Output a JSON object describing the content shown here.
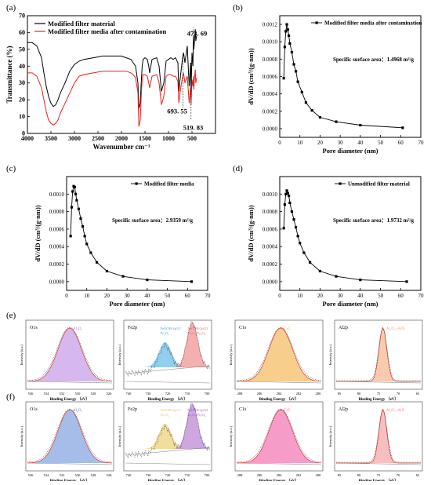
{
  "panels": {
    "a": {
      "tag": "(a)",
      "ylabel": "Transmittance (%)",
      "xlabel": "Wavenumber cm⁻¹",
      "legend": [
        {
          "label": "Modified filter material",
          "color": "#000000"
        },
        {
          "label": "Modified filter media after contamination",
          "color": "#e8211b"
        }
      ],
      "annotations": [
        "473. 69",
        "693. 55",
        "519. 83"
      ]
    },
    "b": {
      "tag": "(b)",
      "ylabel": "dV/dD (cm³/(g·nm))",
      "xlabel": "Pore diameter (nm)",
      "legend": "Modified filter media after contamination",
      "annotation": "Specific surface area：1.4968 m²/g"
    },
    "c": {
      "tag": "(c)",
      "ylabel": "dV/dD (cm³/(g·nm))",
      "xlabel": "Pore diameter (nm)",
      "legend": "Modified filter media",
      "annotation": "Specific surface area：2.9359 m²/g"
    },
    "d": {
      "tag": "(d)",
      "ylabel": "dV/dD (cm³/(g·nm))",
      "xlabel": "Pore diameter (nm)",
      "legend": "Unmodified filter material",
      "annotation": "Specific surface area：1.9732 m²/g"
    },
    "e": {
      "tag": "(e)"
    },
    "f": {
      "tag": "(f)"
    }
  },
  "xps_common": {
    "ylabel": "Intensity (a.u.)",
    "xlabel": "Binding Energy （eV）"
  },
  "xps": {
    "e": [
      {
        "element": "O1s",
        "ticks": [
          "536",
          "534",
          "532",
          "530",
          "528",
          "526"
        ],
        "peaks": [
          {
            "label": "Al₂O₃",
            "color": "#b57be0"
          }
        ]
      },
      {
        "element": "Fe2p",
        "ticks": [
          "740",
          "730",
          "720",
          "710",
          "700"
        ],
        "peaks": [
          {
            "label": "FeOOH-2p1/2\nFe₃O₄",
            "color": "#39a8e0"
          },
          {
            "label": "FeOOH-2p3/2\nFe₂O₃/Fe₃O₄",
            "color": "#ee6d6d"
          }
        ]
      },
      {
        "element": "C1s",
        "ticks": [
          "288",
          "286",
          "284",
          "282",
          "280"
        ],
        "peaks": [
          {
            "label": "C-C",
            "color": "#f2a530"
          }
        ]
      },
      {
        "element": "Al2p",
        "ticks": [
          "85",
          "80",
          "75",
          "70",
          "65"
        ],
        "peaks": [
          {
            "label": "Al₂O₃+AlN",
            "color": "#f3a06b"
          }
        ]
      }
    ],
    "f": [
      {
        "element": "O1s",
        "ticks": [
          "536",
          "534",
          "532",
          "530",
          "528",
          "526"
        ],
        "peaks": [
          {
            "label": "Al₂O₃",
            "color": "#5b86d6"
          }
        ]
      },
      {
        "element": "Fe2p",
        "ticks": [
          "740",
          "730",
          "720",
          "710",
          "700"
        ],
        "peaks": [
          {
            "label": "FeOOH-2p1/2\nFe₃O₄",
            "color": "#e8c24a"
          },
          {
            "label": "FeOOH-2p3/2\nFe₂O₃/Fe₃O₄",
            "color": "#a55fc9"
          }
        ]
      },
      {
        "element": "C1s",
        "ticks": [
          "288",
          "286",
          "284",
          "282",
          "280"
        ],
        "peaks": [
          {
            "label": "C-C",
            "color": "#ef4a9a"
          }
        ]
      },
      {
        "element": "Al2p",
        "ticks": [
          "85",
          "80",
          "75",
          "70",
          "65"
        ],
        "peaks": [
          {
            "label": "Al₂O₃+AlN",
            "color": "#f08a8a"
          }
        ]
      }
    ]
  },
  "chart_data": [
    {
      "panel": "a",
      "type": "line",
      "xlabel": "Wavenumber cm⁻¹",
      "ylabel": "Transmittance (%)",
      "xlim": [
        4000,
        0
      ],
      "ylim": [
        0,
        70
      ],
      "xticks": [
        "4000",
        "3500",
        "3000",
        "2500",
        "2000",
        "1500",
        "1000",
        "500"
      ],
      "yticks": [
        "0",
        "10",
        "20",
        "30",
        "40",
        "50",
        "60",
        "70"
      ],
      "series": [
        {
          "name": "Modified filter material",
          "color": "#000000",
          "x": [
            4000,
            3900,
            3800,
            3700,
            3650,
            3600,
            3550,
            3500,
            3450,
            3400,
            3350,
            3300,
            3200,
            3100,
            3000,
            2900,
            2800,
            2600,
            2400,
            2200,
            2000,
            1900,
            1800,
            1750,
            1700,
            1650,
            1630,
            1600,
            1580,
            1560,
            1540,
            1500,
            1450,
            1420,
            1400,
            1350,
            1250,
            1200,
            1150,
            1100,
            1080,
            1050,
            1000,
            950,
            900,
            850,
            800,
            780,
            750,
            700,
            680,
            650,
            600,
            560,
            530,
            520,
            500,
            480,
            470,
            460,
            450,
            430,
            420,
            400
          ],
          "y": [
            54,
            54,
            52,
            45,
            36,
            28,
            22,
            18,
            16,
            17,
            20,
            24,
            30,
            37,
            41,
            43,
            44,
            45,
            46,
            46,
            46,
            45,
            44,
            42,
            40,
            30,
            15,
            18,
            30,
            40,
            44,
            45,
            44,
            40,
            36,
            44,
            45,
            40,
            25,
            30,
            35,
            43,
            44,
            45,
            44,
            45,
            42,
            25,
            33,
            45,
            48,
            42,
            52,
            28,
            42,
            24,
            48,
            40,
            58,
            50,
            54,
            62,
            55,
            58
          ]
        },
        {
          "name": "Modified filter media after contamination",
          "color": "#e8211b",
          "x": [
            4000,
            3900,
            3800,
            3700,
            3650,
            3600,
            3550,
            3500,
            3450,
            3400,
            3350,
            3300,
            3200,
            3100,
            3000,
            2900,
            2800,
            2600,
            2400,
            2200,
            2000,
            1900,
            1800,
            1750,
            1700,
            1650,
            1630,
            1600,
            1580,
            1560,
            1540,
            1500,
            1450,
            1420,
            1400,
            1350,
            1250,
            1200,
            1150,
            1100,
            1080,
            1050,
            1000,
            950,
            900,
            850,
            800,
            780,
            750,
            700,
            680,
            650,
            600,
            560,
            530,
            520,
            500,
            480,
            470,
            460,
            450,
            430,
            420,
            400
          ],
          "y": [
            36,
            36,
            34,
            27,
            20,
            13,
            8,
            6,
            5,
            6,
            8,
            12,
            18,
            24,
            30,
            34,
            35,
            36,
            37,
            37,
            37,
            37,
            36,
            35,
            33,
            24,
            4,
            8,
            22,
            32,
            35,
            35,
            34,
            30,
            27,
            34,
            35,
            30,
            17,
            22,
            27,
            34,
            35,
            35,
            34,
            34,
            31,
            18,
            25,
            34,
            36,
            30,
            34,
            18,
            27,
            17,
            32,
            28,
            34,
            26,
            32,
            38,
            30,
            33
          ]
        }
      ]
    },
    {
      "panel": "b",
      "type": "line",
      "title": "Modified filter media after contamination",
      "xlabel": "Pore diameter (nm)",
      "ylabel": "dV/dD (cm³/(g·nm))",
      "xlim": [
        0,
        70
      ],
      "ylim": [
        -0.0001,
        0.0013
      ],
      "xticks": [
        "0",
        "10",
        "20",
        "30",
        "40",
        "50",
        "60",
        "70"
      ],
      "yticks": [
        "0.0000",
        "0.0002",
        "0.0004",
        "0.0006",
        "0.0008",
        "0.0010",
        "0.0012"
      ],
      "x": [
        2,
        2.5,
        3,
        3.5,
        4,
        4.5,
        5,
        6,
        7,
        8,
        9,
        11,
        13,
        16,
        20,
        28,
        40,
        61
      ],
      "y": [
        0.00058,
        0.00094,
        0.00112,
        0.0012,
        0.00114,
        0.00107,
        0.00098,
        0.00088,
        0.00074,
        0.00066,
        0.00054,
        0.00042,
        0.0003,
        0.00021,
        0.00013,
        8e-05,
        4e-05,
        1e-05
      ]
    },
    {
      "panel": "c",
      "type": "line",
      "title": "Modified filter media",
      "xlabel": "Pore diameter (nm)",
      "ylabel": "dV/dD (cm³/(g·nm))",
      "xlim": [
        0,
        70
      ],
      "ylim": [
        -0.0001,
        0.0012
      ],
      "xticks": [
        "0",
        "10",
        "20",
        "30",
        "40",
        "50",
        "60",
        "70"
      ],
      "yticks": [
        "0.0000",
        "0.0002",
        "0.0004",
        "0.0006",
        "0.0008",
        "0.0010"
      ],
      "x": [
        2,
        2.5,
        3,
        3.5,
        4,
        4.5,
        5,
        6,
        7,
        8,
        9,
        10,
        12,
        15,
        20,
        28,
        40,
        62
      ],
      "y": [
        0.00052,
        0.00085,
        0.00103,
        0.00109,
        0.00108,
        0.001,
        0.00093,
        0.00083,
        0.00072,
        0.00063,
        0.00052,
        0.00043,
        0.00033,
        0.00022,
        0.00012,
        6e-05,
        2e-05,
        0.0
      ]
    },
    {
      "panel": "d",
      "type": "line",
      "title": "Unmodified filter material",
      "xlabel": "Pore diameter (nm)",
      "ylabel": "dV/dD (cm³/(g·nm))",
      "xlim": [
        0,
        70
      ],
      "ylim": [
        -0.0001,
        0.0012
      ],
      "xticks": [
        "0",
        "10",
        "20",
        "30",
        "40",
        "50",
        "60",
        "70"
      ],
      "yticks": [
        "0.0000",
        "0.0002",
        "0.0004",
        "0.0006",
        "0.0008",
        "0.0010"
      ],
      "x": [
        2,
        2.5,
        3,
        3.5,
        4,
        4.5,
        5,
        6,
        7,
        8,
        9,
        10,
        12,
        15,
        20,
        28,
        40,
        63
      ],
      "y": [
        0.00061,
        0.00088,
        0.001,
        0.00104,
        0.00101,
        0.00098,
        0.0009,
        0.0008,
        0.00071,
        0.00062,
        0.00052,
        0.00044,
        0.00033,
        0.00022,
        0.00012,
        6e-05,
        2e-05,
        0.0
      ]
    }
  ]
}
